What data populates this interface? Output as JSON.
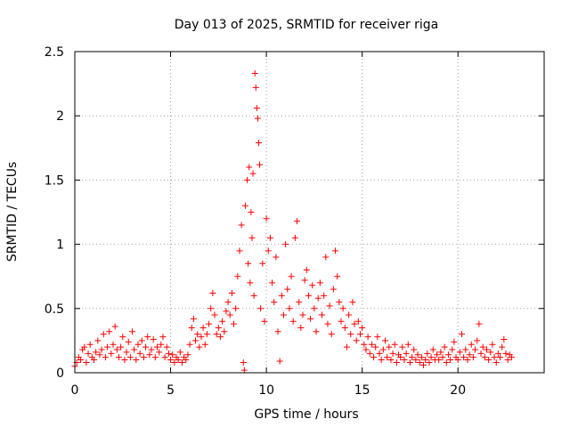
{
  "chart_data": {
    "type": "scatter",
    "title": "Day 013 of 2025, SRMTID for receiver riga",
    "xlabel": "GPS time / hours",
    "ylabel": "SRMTID / TECUs",
    "xlim": [
      0,
      24.5
    ],
    "ylim": [
      0,
      2.5
    ],
    "xticks": [
      0,
      5,
      10,
      15,
      20
    ],
    "xtick_labels": [
      "0",
      "5",
      "10",
      "15",
      "20"
    ],
    "yticks": [
      0,
      0.5,
      1,
      1.5,
      2,
      2.5
    ],
    "ytick_labels": [
      "0",
      "0.5",
      "1",
      "1.5",
      "2",
      "2.5"
    ],
    "grid": true,
    "marker": "+",
    "color": "#ff0000",
    "series": [
      {
        "name": "SRMTID",
        "points": [
          [
            0.0,
            0.05
          ],
          [
            0.1,
            0.08
          ],
          [
            0.2,
            0.12
          ],
          [
            0.3,
            0.1
          ],
          [
            0.4,
            0.18
          ],
          [
            0.5,
            0.2
          ],
          [
            0.6,
            0.08
          ],
          [
            0.7,
            0.15
          ],
          [
            0.8,
            0.22
          ],
          [
            0.9,
            0.12
          ],
          [
            1.0,
            0.1
          ],
          [
            1.1,
            0.16
          ],
          [
            1.2,
            0.25
          ],
          [
            1.3,
            0.14
          ],
          [
            1.4,
            0.18
          ],
          [
            1.5,
            0.3
          ],
          [
            1.6,
            0.12
          ],
          [
            1.7,
            0.2
          ],
          [
            1.8,
            0.32
          ],
          [
            1.9,
            0.15
          ],
          [
            2.0,
            0.22
          ],
          [
            2.1,
            0.36
          ],
          [
            2.2,
            0.18
          ],
          [
            2.3,
            0.12
          ],
          [
            2.4,
            0.2
          ],
          [
            2.5,
            0.28
          ],
          [
            2.6,
            0.1
          ],
          [
            2.7,
            0.16
          ],
          [
            2.8,
            0.24
          ],
          [
            2.9,
            0.12
          ],
          [
            3.0,
            0.32
          ],
          [
            3.1,
            0.18
          ],
          [
            3.2,
            0.1
          ],
          [
            3.3,
            0.22
          ],
          [
            3.4,
            0.15
          ],
          [
            3.5,
            0.25
          ],
          [
            3.6,
            0.12
          ],
          [
            3.7,
            0.2
          ],
          [
            3.8,
            0.28
          ],
          [
            3.9,
            0.14
          ],
          [
            4.0,
            0.18
          ],
          [
            4.1,
            0.26
          ],
          [
            4.2,
            0.12
          ],
          [
            4.3,
            0.2
          ],
          [
            4.4,
            0.16
          ],
          [
            4.5,
            0.22
          ],
          [
            4.6,
            0.28
          ],
          [
            4.7,
            0.12
          ],
          [
            4.8,
            0.2
          ],
          [
            4.9,
            0.15
          ],
          [
            5.0,
            0.1
          ],
          [
            5.1,
            0.14
          ],
          [
            5.2,
            0.08
          ],
          [
            5.3,
            0.12
          ],
          [
            5.4,
            0.1
          ],
          [
            5.5,
            0.16
          ],
          [
            5.6,
            0.08
          ],
          [
            5.7,
            0.12
          ],
          [
            5.8,
            0.1
          ],
          [
            5.9,
            0.14
          ],
          [
            6.0,
            0.22
          ],
          [
            6.1,
            0.35
          ],
          [
            6.2,
            0.42
          ],
          [
            6.3,
            0.25
          ],
          [
            6.4,
            0.3
          ],
          [
            6.5,
            0.2
          ],
          [
            6.6,
            0.28
          ],
          [
            6.7,
            0.35
          ],
          [
            6.8,
            0.22
          ],
          [
            6.9,
            0.3
          ],
          [
            7.0,
            0.38
          ],
          [
            7.1,
            0.5
          ],
          [
            7.2,
            0.62
          ],
          [
            7.3,
            0.45
          ],
          [
            7.4,
            0.3
          ],
          [
            7.5,
            0.35
          ],
          [
            7.6,
            0.28
          ],
          [
            7.7,
            0.4
          ],
          [
            7.8,
            0.32
          ],
          [
            7.9,
            0.48
          ],
          [
            8.0,
            0.55
          ],
          [
            8.1,
            0.45
          ],
          [
            8.2,
            0.62
          ],
          [
            8.3,
            0.38
          ],
          [
            8.4,
            0.5
          ],
          [
            8.5,
            0.75
          ],
          [
            8.6,
            0.95
          ],
          [
            8.7,
            1.15
          ],
          [
            8.8,
            0.08
          ],
          [
            8.85,
            0.02
          ],
          [
            8.9,
            1.3
          ],
          [
            9.0,
            1.5
          ],
          [
            9.05,
            0.85
          ],
          [
            9.1,
            1.6
          ],
          [
            9.15,
            0.7
          ],
          [
            9.2,
            1.25
          ],
          [
            9.25,
            1.05
          ],
          [
            9.3,
            1.55
          ],
          [
            9.35,
            0.6
          ],
          [
            9.4,
            2.33
          ],
          [
            9.45,
            2.22
          ],
          [
            9.5,
            2.06
          ],
          [
            9.55,
            1.98
          ],
          [
            9.6,
            1.79
          ],
          [
            9.65,
            1.62
          ],
          [
            9.7,
            0.5
          ],
          [
            9.8,
            0.85
          ],
          [
            9.9,
            0.4
          ],
          [
            10.0,
            1.2
          ],
          [
            10.1,
            0.95
          ],
          [
            10.2,
            1.05
          ],
          [
            10.3,
            0.7
          ],
          [
            10.4,
            0.55
          ],
          [
            10.5,
            0.9
          ],
          [
            10.6,
            0.32
          ],
          [
            10.7,
            0.09
          ],
          [
            10.8,
            0.6
          ],
          [
            10.9,
            0.45
          ],
          [
            11.0,
            1.0
          ],
          [
            11.1,
            0.65
          ],
          [
            11.2,
            0.5
          ],
          [
            11.3,
            0.75
          ],
          [
            11.4,
            0.4
          ],
          [
            11.5,
            1.05
          ],
          [
            11.6,
            1.18
          ],
          [
            11.7,
            0.55
          ],
          [
            11.8,
            0.35
          ],
          [
            11.9,
            0.45
          ],
          [
            12.0,
            0.72
          ],
          [
            12.1,
            0.8
          ],
          [
            12.2,
            0.6
          ],
          [
            12.3,
            0.42
          ],
          [
            12.4,
            0.68
          ],
          [
            12.5,
            0.5
          ],
          [
            12.6,
            0.32
          ],
          [
            12.7,
            0.58
          ],
          [
            12.8,
            0.7
          ],
          [
            12.9,
            0.45
          ],
          [
            13.0,
            0.6
          ],
          [
            13.1,
            0.9
          ],
          [
            13.2,
            0.38
          ],
          [
            13.3,
            0.52
          ],
          [
            13.4,
            0.3
          ],
          [
            13.5,
            0.65
          ],
          [
            13.6,
            0.95
          ],
          [
            13.7,
            0.75
          ],
          [
            13.8,
            0.55
          ],
          [
            13.9,
            0.4
          ],
          [
            14.0,
            0.5
          ],
          [
            14.1,
            0.35
          ],
          [
            14.2,
            0.2
          ],
          [
            14.3,
            0.45
          ],
          [
            14.4,
            0.3
          ],
          [
            14.5,
            0.55
          ],
          [
            14.6,
            0.38
          ],
          [
            14.7,
            0.25
          ],
          [
            14.8,
            0.4
          ],
          [
            14.9,
            0.3
          ],
          [
            15.0,
            0.35
          ],
          [
            15.1,
            0.22
          ],
          [
            15.2,
            0.18
          ],
          [
            15.3,
            0.28
          ],
          [
            15.4,
            0.15
          ],
          [
            15.5,
            0.22
          ],
          [
            15.6,
            0.12
          ],
          [
            15.7,
            0.2
          ],
          [
            15.8,
            0.28
          ],
          [
            15.9,
            0.15
          ],
          [
            16.0,
            0.1
          ],
          [
            16.1,
            0.18
          ],
          [
            16.2,
            0.25
          ],
          [
            16.3,
            0.12
          ],
          [
            16.4,
            0.2
          ],
          [
            16.5,
            0.1
          ],
          [
            16.6,
            0.15
          ],
          [
            16.7,
            0.22
          ],
          [
            16.8,
            0.08
          ],
          [
            16.9,
            0.14
          ],
          [
            17.0,
            0.12
          ],
          [
            17.1,
            0.2
          ],
          [
            17.2,
            0.1
          ],
          [
            17.3,
            0.15
          ],
          [
            17.4,
            0.22
          ],
          [
            17.5,
            0.08
          ],
          [
            17.6,
            0.12
          ],
          [
            17.7,
            0.18
          ],
          [
            17.8,
            0.1
          ],
          [
            17.9,
            0.14
          ],
          [
            18.0,
            0.08
          ],
          [
            18.1,
            0.12
          ],
          [
            18.2,
            0.06
          ],
          [
            18.3,
            0.1
          ],
          [
            18.4,
            0.15
          ],
          [
            18.5,
            0.08
          ],
          [
            18.6,
            0.12
          ],
          [
            18.7,
            0.18
          ],
          [
            18.8,
            0.1
          ],
          [
            18.9,
            0.14
          ],
          [
            19.0,
            0.1
          ],
          [
            19.1,
            0.16
          ],
          [
            19.2,
            0.12
          ],
          [
            19.3,
            0.2
          ],
          [
            19.4,
            0.08
          ],
          [
            19.5,
            0.14
          ],
          [
            19.6,
            0.1
          ],
          [
            19.7,
            0.18
          ],
          [
            19.8,
            0.24
          ],
          [
            19.9,
            0.12
          ],
          [
            20.0,
            0.1
          ],
          [
            20.1,
            0.16
          ],
          [
            20.2,
            0.3
          ],
          [
            20.3,
            0.12
          ],
          [
            20.4,
            0.18
          ],
          [
            20.5,
            0.1
          ],
          [
            20.6,
            0.14
          ],
          [
            20.7,
            0.22
          ],
          [
            20.8,
            0.12
          ],
          [
            20.9,
            0.18
          ],
          [
            21.0,
            0.25
          ],
          [
            21.1,
            0.38
          ],
          [
            21.2,
            0.15
          ],
          [
            21.3,
            0.2
          ],
          [
            21.4,
            0.12
          ],
          [
            21.5,
            0.18
          ],
          [
            21.6,
            0.1
          ],
          [
            21.7,
            0.16
          ],
          [
            21.8,
            0.22
          ],
          [
            21.9,
            0.12
          ],
          [
            22.0,
            0.08
          ],
          [
            22.1,
            0.15
          ],
          [
            22.2,
            0.12
          ],
          [
            22.3,
            0.2
          ],
          [
            22.4,
            0.26
          ],
          [
            22.5,
            0.15
          ],
          [
            22.6,
            0.1
          ],
          [
            22.7,
            0.14
          ],
          [
            22.8,
            0.12
          ]
        ]
      }
    ]
  }
}
